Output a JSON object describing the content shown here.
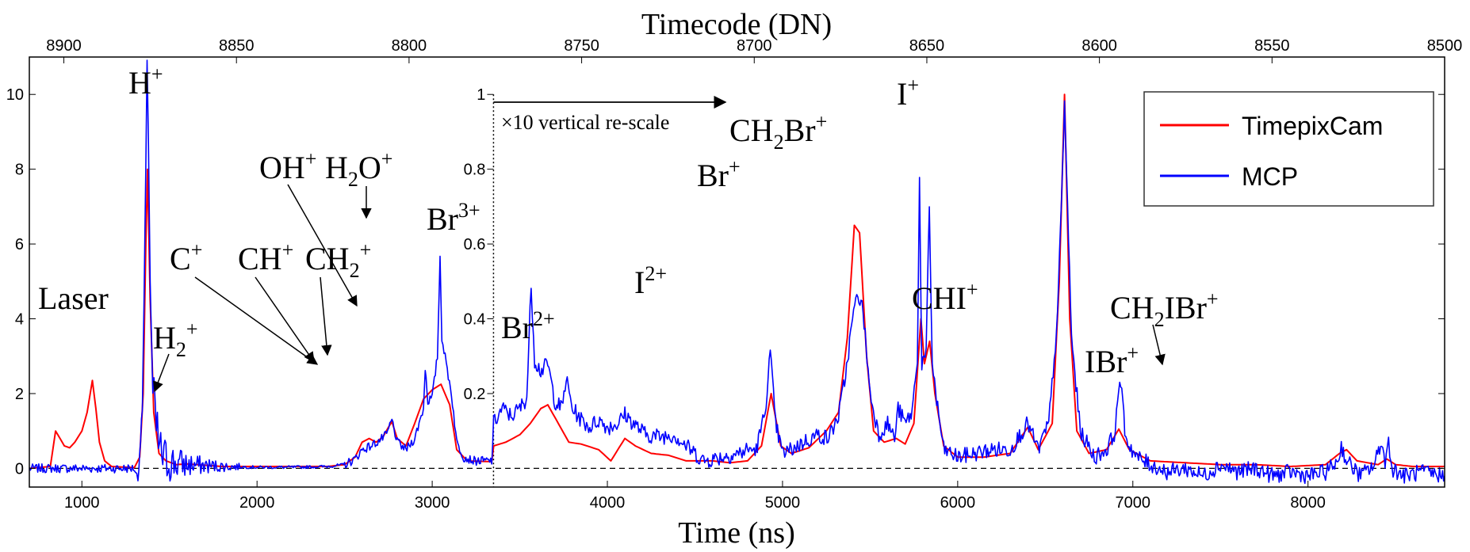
{
  "chart_data": {
    "type": "line",
    "xlabel": "Time (ns)",
    "top_xlabel": "Timecode (DN)",
    "xlim": [
      700,
      8780
    ],
    "ylim": [
      -0.5,
      11
    ],
    "x_ticks": [
      1000,
      2000,
      3000,
      4000,
      5000,
      6000,
      7000,
      8000
    ],
    "x_tick_labels": [
      "1000",
      "2000",
      "3000",
      "4000",
      "5000",
      "6000",
      "7000",
      "8000"
    ],
    "top_ticks": [
      8900,
      8850,
      8800,
      8750,
      8700,
      8650,
      8600,
      8550,
      8500
    ],
    "top_tick_labels": [
      "8900",
      "8850",
      "8800",
      "8750",
      "8700",
      "8650",
      "8600",
      "8550",
      "8500"
    ],
    "left_ticks": [
      0,
      2,
      4,
      6,
      8,
      10
    ],
    "left_tick_labels": [
      "0",
      "2",
      "4",
      "6",
      "8",
      "10"
    ],
    "inner_ticks": [
      0.2,
      0.4,
      0.6,
      0.8,
      1
    ],
    "inner_tick_labels": [
      "0.2",
      "0.4",
      "0.6",
      "0.8",
      "1"
    ],
    "rescale_x": 3350,
    "rescale_note": "×10 vertical re-scale",
    "legend": {
      "placement": "top-right",
      "entries": [
        {
          "name": "TimepixCam",
          "color": "#ff0000"
        },
        {
          "name": "MCP",
          "color": "#0000ff"
        }
      ]
    },
    "series": [
      {
        "name": "TimepixCam",
        "color": "#ff0000",
        "points": [
          [
            700,
            0
          ],
          [
            820,
            0.05
          ],
          [
            850,
            1.0
          ],
          [
            875,
            0.8
          ],
          [
            900,
            0.6
          ],
          [
            930,
            0.55
          ],
          [
            960,
            0.7
          ],
          [
            1000,
            1.0
          ],
          [
            1030,
            1.5
          ],
          [
            1060,
            2.35
          ],
          [
            1080,
            1.6
          ],
          [
            1100,
            0.7
          ],
          [
            1130,
            0.2
          ],
          [
            1170,
            0.05
          ],
          [
            1300,
            0.02
          ],
          [
            1330,
            0.3
          ],
          [
            1350,
            2.0
          ],
          [
            1365,
            6.0
          ],
          [
            1375,
            8.0
          ],
          [
            1390,
            4.5
          ],
          [
            1410,
            1.5
          ],
          [
            1440,
            0.4
          ],
          [
            1480,
            0.2
          ],
          [
            1540,
            0.1
          ],
          [
            1600,
            0.12
          ],
          [
            1800,
            0.05
          ],
          [
            2000,
            0.05
          ],
          [
            2200,
            0.05
          ],
          [
            2400,
            0.05
          ],
          [
            2500,
            0.1
          ],
          [
            2560,
            0.3
          ],
          [
            2600,
            0.7
          ],
          [
            2640,
            0.8
          ],
          [
            2680,
            0.7
          ],
          [
            2720,
            0.85
          ],
          [
            2750,
            1.1
          ],
          [
            2770,
            1.25
          ],
          [
            2800,
            0.8
          ],
          [
            2850,
            0.6
          ],
          [
            2900,
            1.2
          ],
          [
            2950,
            1.85
          ],
          [
            3000,
            2.1
          ],
          [
            3050,
            2.25
          ],
          [
            3100,
            1.7
          ],
          [
            3140,
            0.5
          ],
          [
            3200,
            0.2
          ],
          [
            3340,
            0.18
          ],
          [
            3351,
            0.6
          ],
          [
            3420,
            0.7
          ],
          [
            3500,
            0.9
          ],
          [
            3560,
            1.2
          ],
          [
            3620,
            1.6
          ],
          [
            3660,
            1.7
          ],
          [
            3720,
            1.2
          ],
          [
            3780,
            0.7
          ],
          [
            3850,
            0.65
          ],
          [
            3950,
            0.5
          ],
          [
            4020,
            0.2
          ],
          [
            4100,
            0.8
          ],
          [
            4160,
            0.6
          ],
          [
            4250,
            0.4
          ],
          [
            4350,
            0.35
          ],
          [
            4450,
            0.2
          ],
          [
            4600,
            0.2
          ],
          [
            4700,
            0.15
          ],
          [
            4800,
            0.2
          ],
          [
            4880,
            0.6
          ],
          [
            4935,
            2.0
          ],
          [
            4990,
            0.6
          ],
          [
            5050,
            0.4
          ],
          [
            5150,
            0.55
          ],
          [
            5250,
            1.0
          ],
          [
            5320,
            1.5
          ],
          [
            5370,
            3.5
          ],
          [
            5410,
            6.5
          ],
          [
            5440,
            6.3
          ],
          [
            5480,
            3.0
          ],
          [
            5520,
            1.0
          ],
          [
            5580,
            0.7
          ],
          [
            5650,
            0.8
          ],
          [
            5700,
            0.65
          ],
          [
            5750,
            1.2
          ],
          [
            5790,
            4.0
          ],
          [
            5810,
            2.8
          ],
          [
            5840,
            3.4
          ],
          [
            5870,
            2.0
          ],
          [
            5920,
            0.6
          ],
          [
            6000,
            0.3
          ],
          [
            6150,
            0.3
          ],
          [
            6300,
            0.4
          ],
          [
            6400,
            1.1
          ],
          [
            6460,
            0.5
          ],
          [
            6540,
            1.2
          ],
          [
            6580,
            5.0
          ],
          [
            6610,
            10.0
          ],
          [
            6640,
            4.0
          ],
          [
            6680,
            1.0
          ],
          [
            6750,
            0.4
          ],
          [
            6850,
            0.5
          ],
          [
            6920,
            1.05
          ],
          [
            6980,
            0.5
          ],
          [
            7100,
            0.2
          ],
          [
            7300,
            0.15
          ],
          [
            7500,
            0.1
          ],
          [
            7700,
            0.1
          ],
          [
            7900,
            0.05
          ],
          [
            8100,
            0.1
          ],
          [
            8180,
            0.4
          ],
          [
            8220,
            0.5
          ],
          [
            8280,
            0.2
          ],
          [
            8400,
            0.1
          ],
          [
            8450,
            0.25
          ],
          [
            8500,
            0.1
          ],
          [
            8600,
            0.05
          ],
          [
            8780,
            0.05
          ]
        ]
      },
      {
        "name": "MCP",
        "color": "#0000ff",
        "points": [
          [
            700,
            0
          ],
          [
            1300,
            0
          ],
          [
            1320,
            -0.3
          ],
          [
            1335,
            0.8
          ],
          [
            1345,
            1.6
          ],
          [
            1355,
            4.5
          ],
          [
            1365,
            8.0
          ],
          [
            1372,
            10.8
          ],
          [
            1380,
            8.8
          ],
          [
            1390,
            5.0
          ],
          [
            1405,
            2.0
          ],
          [
            1425,
            1.0
          ],
          [
            1450,
            0.4
          ],
          [
            1480,
            0.2
          ],
          [
            1520,
            0.15
          ],
          [
            1600,
            0.1
          ],
          [
            1800,
            0.05
          ],
          [
            2000,
            0.03
          ],
          [
            2200,
            0.03
          ],
          [
            2400,
            0.05
          ],
          [
            2500,
            0.1
          ],
          [
            2560,
            0.25
          ],
          [
            2600,
            0.5
          ],
          [
            2650,
            0.6
          ],
          [
            2700,
            0.75
          ],
          [
            2740,
            0.9
          ],
          [
            2770,
            1.3
          ],
          [
            2800,
            0.7
          ],
          [
            2850,
            0.5
          ],
          [
            2900,
            0.8
          ],
          [
            2950,
            1.6
          ],
          [
            2960,
            2.7
          ],
          [
            2975,
            1.8
          ],
          [
            3000,
            1.9
          ],
          [
            3030,
            3.0
          ],
          [
            3045,
            5.65
          ],
          [
            3055,
            3.5
          ],
          [
            3080,
            2.8
          ],
          [
            3110,
            2.0
          ],
          [
            3140,
            0.7
          ],
          [
            3180,
            0.3
          ],
          [
            3240,
            0.2
          ],
          [
            3340,
            0.2
          ],
          [
            3351,
            1.2
          ],
          [
            3400,
            1.6
          ],
          [
            3450,
            1.4
          ],
          [
            3500,
            1.6
          ],
          [
            3540,
            1.9
          ],
          [
            3565,
            4.9
          ],
          [
            3585,
            2.9
          ],
          [
            3620,
            2.6
          ],
          [
            3660,
            2.8
          ],
          [
            3700,
            1.8
          ],
          [
            3740,
            1.6
          ],
          [
            3765,
            2.4
          ],
          [
            3800,
            1.6
          ],
          [
            3850,
            1.3
          ],
          [
            3900,
            1.1
          ],
          [
            3950,
            1.3
          ],
          [
            4000,
            1.1
          ],
          [
            4060,
            1.2
          ],
          [
            4100,
            1.45
          ],
          [
            4150,
            1.2
          ],
          [
            4220,
            0.9
          ],
          [
            4300,
            0.85
          ],
          [
            4380,
            0.9
          ],
          [
            4450,
            0.6
          ],
          [
            4550,
            0.2
          ],
          [
            4650,
            0.3
          ],
          [
            4750,
            0.4
          ],
          [
            4800,
            0.5
          ],
          [
            4850,
            0.5
          ],
          [
            4900,
            1.5
          ],
          [
            4930,
            3.1
          ],
          [
            4960,
            1.2
          ],
          [
            5000,
            0.4
          ],
          [
            5050,
            0.5
          ],
          [
            5120,
            0.7
          ],
          [
            5200,
            0.9
          ],
          [
            5260,
            0.8
          ],
          [
            5320,
            1.4
          ],
          [
            5360,
            2.5
          ],
          [
            5400,
            4.0
          ],
          [
            5430,
            4.7
          ],
          [
            5460,
            4.2
          ],
          [
            5500,
            2.0
          ],
          [
            5550,
            0.9
          ],
          [
            5600,
            1.2
          ],
          [
            5640,
            0.8
          ],
          [
            5660,
            1.6
          ],
          [
            5700,
            1.2
          ],
          [
            5740,
            1.5
          ],
          [
            5770,
            3.0
          ],
          [
            5782,
            7.7
          ],
          [
            5795,
            2.8
          ],
          [
            5820,
            3.0
          ],
          [
            5838,
            7.0
          ],
          [
            5855,
            2.8
          ],
          [
            5880,
            1.8
          ],
          [
            5920,
            0.5
          ],
          [
            6000,
            0.3
          ],
          [
            6100,
            0.4
          ],
          [
            6200,
            0.5
          ],
          [
            6300,
            0.5
          ],
          [
            6400,
            1.2
          ],
          [
            6460,
            0.5
          ],
          [
            6520,
            1.2
          ],
          [
            6570,
            4.0
          ],
          [
            6610,
            9.7
          ],
          [
            6650,
            3.5
          ],
          [
            6700,
            1.0
          ],
          [
            6780,
            0.3
          ],
          [
            6850,
            0.5
          ],
          [
            6900,
            1.0
          ],
          [
            6925,
            2.5
          ],
          [
            6960,
            0.8
          ],
          [
            7020,
            0.3
          ],
          [
            7100,
            0.1
          ],
          [
            7200,
            -0.1
          ],
          [
            7300,
            0.0
          ],
          [
            7400,
            -0.2
          ],
          [
            7500,
            0.1
          ],
          [
            7600,
            -0.1
          ],
          [
            7700,
            0.0
          ],
          [
            7800,
            -0.2
          ],
          [
            7900,
            -0.1
          ],
          [
            8000,
            -0.2
          ],
          [
            8100,
            -0.1
          ],
          [
            8170,
            0.2
          ],
          [
            8190,
            0.6
          ],
          [
            8220,
            0.2
          ],
          [
            8300,
            -0.2
          ],
          [
            8380,
            0.1
          ],
          [
            8420,
            0.75
          ],
          [
            8440,
            0.1
          ],
          [
            8460,
            0.75
          ],
          [
            8480,
            0.0
          ],
          [
            8550,
            -0.2
          ],
          [
            8650,
            -0.1
          ],
          [
            8780,
            -0.2
          ]
        ]
      }
    ],
    "annotations": [
      {
        "id": "laser",
        "label": "Laser"
      },
      {
        "id": "h",
        "label": "H",
        "sup": "+"
      },
      {
        "id": "h2",
        "label": "H",
        "sub": "2",
        "sup": "+"
      },
      {
        "id": "c",
        "label": "C",
        "sup": "+"
      },
      {
        "id": "ch",
        "label": "CH",
        "sup": "+"
      },
      {
        "id": "ch2",
        "label": "CH",
        "sub": "2",
        "sup": "+"
      },
      {
        "id": "oh",
        "label": "OH",
        "sup": "+"
      },
      {
        "id": "h2o",
        "label": "H",
        "sub": "2",
        "post": "O",
        "sup": "+"
      },
      {
        "id": "br3",
        "label": "Br",
        "sup": "3+"
      },
      {
        "id": "br2",
        "label": "Br",
        "sup": "2+"
      },
      {
        "id": "i2",
        "label": "I",
        "sup": "2+"
      },
      {
        "id": "br",
        "label": "Br",
        "sup": "+"
      },
      {
        "id": "ch2br",
        "label": "CH",
        "sub": "2",
        "post": "Br",
        "sup": "+"
      },
      {
        "id": "i",
        "label": "I",
        "sup": "+"
      },
      {
        "id": "chi",
        "label": "CHI",
        "sup": "+"
      },
      {
        "id": "ibr",
        "label": "IBr",
        "sup": "+"
      },
      {
        "id": "ch2ibr",
        "label": "CH",
        "sub": "2",
        "post": "IBr",
        "sup": "+"
      }
    ]
  }
}
